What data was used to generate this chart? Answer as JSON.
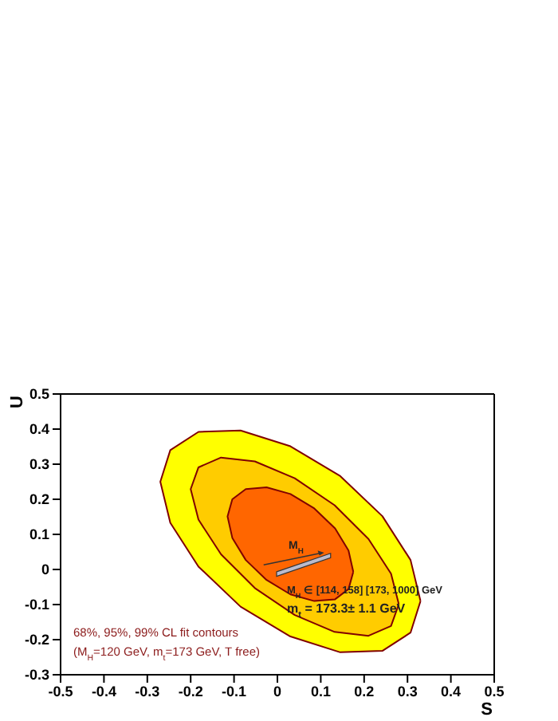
{
  "chart_data": {
    "type": "area",
    "xlabel": "S",
    "ylabel": "U",
    "xlim": [
      -0.5,
      0.5
    ],
    "xticks": [
      -0.5,
      -0.4,
      -0.3,
      -0.2,
      -0.1,
      0,
      0.1,
      0.2,
      0.3,
      0.4,
      0.5
    ],
    "ylim": [
      -0.3,
      0.5
    ],
    "yticks": [
      -0.3,
      -0.2,
      -0.1,
      0,
      0.1,
      0.2,
      0.3,
      0.4,
      0.5
    ],
    "series": [
      {
        "color": "#ffff00",
        "x": [
          0.33,
          0.307,
          0.242,
          0.145,
          0.03,
          -0.085,
          -0.182,
          -0.247,
          -0.27,
          -0.247,
          -0.182,
          -0.085,
          0.03,
          0.145,
          0.242,
          0.307
        ],
        "values": [
          -0.09,
          0.027,
          0.152,
          0.266,
          0.351,
          0.396,
          0.392,
          0.34,
          0.25,
          0.133,
          0.008,
          -0.106,
          -0.191,
          -0.236,
          -0.232,
          -0.18
        ]
      },
      {
        "color": "#ffcc00",
        "x": [
          0.28,
          0.262,
          0.21,
          0.132,
          0.04,
          -0.052,
          -0.13,
          -0.182,
          -0.2,
          -0.182,
          -0.13,
          -0.052,
          0.04,
          0.132,
          0.21,
          0.262
        ],
        "values": [
          -0.099,
          -0.012,
          0.087,
          0.183,
          0.26,
          0.308,
          0.319,
          0.291,
          0.229,
          0.142,
          0.043,
          -0.053,
          -0.13,
          -0.178,
          -0.189,
          -0.161
        ]
      },
      {
        "color": "#ff6600",
        "x": [
          0.175,
          0.164,
          0.133,
          0.085,
          0.03,
          -0.025,
          -0.073,
          -0.104,
          -0.115,
          -0.104,
          -0.073,
          -0.025,
          0.03,
          0.085,
          0.133,
          0.164
        ],
        "values": [
          -0.007,
          0.054,
          0.117,
          0.174,
          0.215,
          0.234,
          0.229,
          0.2,
          0.151,
          0.09,
          0.027,
          -0.03,
          -0.071,
          -0.09,
          -0.085,
          -0.056
        ]
      }
    ],
    "annotations": [
      "M$_{H}$",
      "M$_{H}$ ∈ [114, 158] [173, 1000] GeV",
      "m$_{t}$ = 173.3± 1.1 GeV",
      "68%, 95%, 99% CL fit contours",
      "(M$_{H}$=120 GeV, m$_{t}$=173 GeV, T free)"
    ]
  }
}
